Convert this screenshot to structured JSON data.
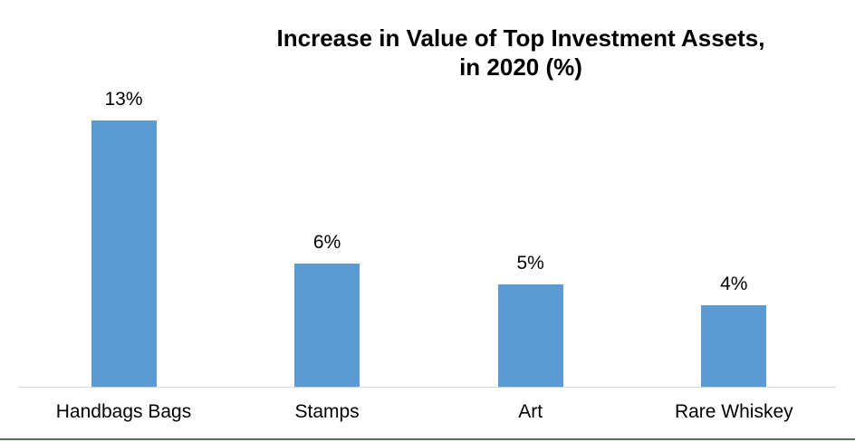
{
  "title": {
    "line1": "Increase in Value of Top Investment Assets,",
    "line2": "in 2020 (%)"
  },
  "chart_data": {
    "type": "bar",
    "title": "Increase in Value of Top Investment Assets, in 2020 (%)",
    "categories": [
      "Handbags Bags",
      "Stamps",
      "Art",
      "Rare Whiskey"
    ],
    "values": [
      13,
      6,
      5,
      4
    ],
    "data_labels": [
      "13%",
      "6%",
      "5%",
      "4%"
    ],
    "xlabel": "",
    "ylabel": "",
    "ylim": [
      0,
      13
    ],
    "grid": false,
    "legend": false,
    "value_axis_visible": false,
    "colors": {
      "bar": "#5B9BD5",
      "axis_line": "#D6D6D6",
      "text": "#000000",
      "bottom_accent_line": "#4F7455",
      "background": "#FFFFFF"
    }
  }
}
